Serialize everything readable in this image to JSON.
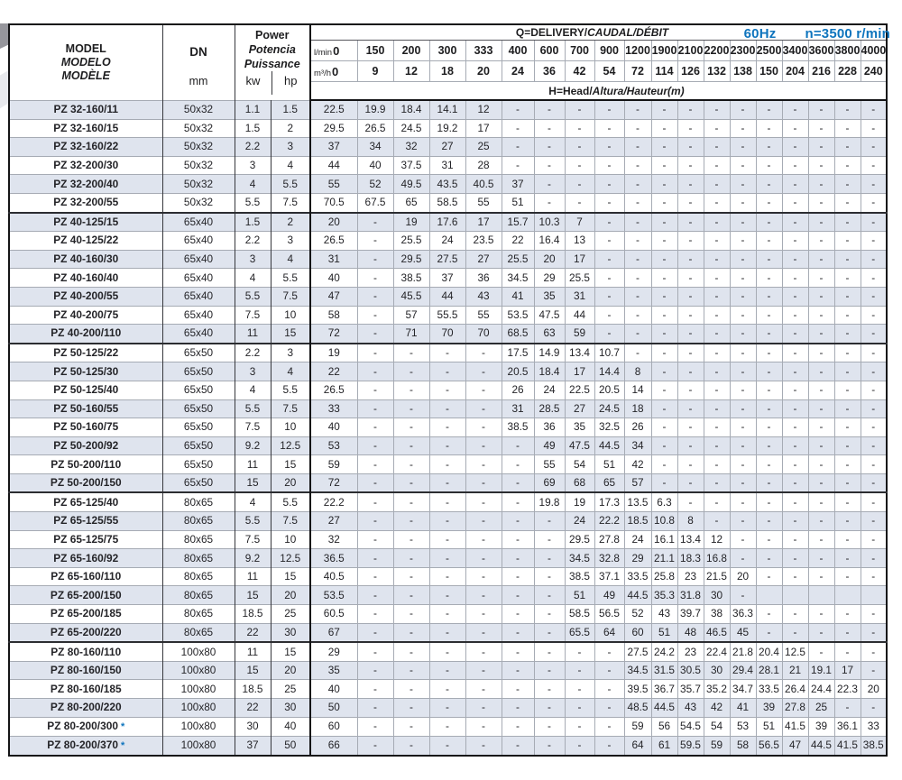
{
  "colors": {
    "accent": "#0e74bd",
    "stripe": "#dfe4ee"
  },
  "header": {
    "frequency": "60Hz",
    "speed": "n=3500 r/min"
  },
  "table": {
    "model_lines": [
      {
        "text": "MODEL",
        "italic": false
      },
      {
        "text": "MODELO",
        "italic": true
      },
      {
        "text": "MODÈLE",
        "italic": true
      }
    ],
    "dn_label": "DN",
    "dn_unit": "mm",
    "power_lines": [
      {
        "text": "Power",
        "italic": false
      },
      {
        "text": "Potencia",
        "italic": true
      },
      {
        "text": "Puissance",
        "italic": true
      }
    ],
    "kw_label": "kw",
    "hp_label": "hp",
    "q_segments": [
      {
        "text": "Q=DELIVERY/",
        "italic": false
      },
      {
        "text": "CAUDAL/",
        "italic": true
      },
      {
        "text": "DÉBIT",
        "italic": true
      }
    ],
    "h_segments": [
      {
        "text": "H=Head/",
        "italic": false
      },
      {
        "text": "Altura/",
        "italic": true
      },
      {
        "text": "Hauteur(m)",
        "italic": true
      }
    ],
    "lmin_label": "l/min",
    "m3h_label": "m³/h",
    "flow_lmin": [
      "0",
      "150",
      "200",
      "300",
      "333",
      "400",
      "600",
      "700",
      "900",
      "1200",
      "1900",
      "2100",
      "2200",
      "2300",
      "2500",
      "3400",
      "3600",
      "3800",
      "4000"
    ],
    "flow_m3h": [
      "0",
      "9",
      "12",
      "18",
      "20",
      "24",
      "36",
      "42",
      "54",
      "72",
      "114",
      "126",
      "132",
      "138",
      "150",
      "204",
      "216",
      "228",
      "240"
    ],
    "star_label": "*",
    "rows": [
      {
        "model": "PZ 32-160/11",
        "star": false,
        "dn": "50x32",
        "kw": "1.1",
        "hp": "1.5",
        "head": [
          "22.5",
          "19.9",
          "18.4",
          "14.1",
          "12",
          "-",
          "-",
          "-",
          "-",
          "-",
          "-",
          "-",
          "-",
          "-",
          "-",
          "-",
          "-",
          "-",
          "-"
        ]
      },
      {
        "model": "PZ 32-160/15",
        "star": false,
        "dn": "50x32",
        "kw": "1.5",
        "hp": "2",
        "head": [
          "29.5",
          "26.5",
          "24.5",
          "19.2",
          "17",
          "-",
          "-",
          "-",
          "-",
          "-",
          "-",
          "-",
          "-",
          "-",
          "-",
          "-",
          "-",
          "-",
          "-"
        ]
      },
      {
        "model": "PZ 32-160/22",
        "star": false,
        "dn": "50x32",
        "kw": "2.2",
        "hp": "3",
        "head": [
          "37",
          "34",
          "32",
          "27",
          "25",
          "-",
          "-",
          "-",
          "-",
          "-",
          "-",
          "-",
          "-",
          "-",
          "-",
          "-",
          "-",
          "-",
          "-"
        ]
      },
      {
        "model": "PZ 32-200/30",
        "star": false,
        "dn": "50x32",
        "kw": "3",
        "hp": "4",
        "head": [
          "44",
          "40",
          "37.5",
          "31",
          "28",
          "-",
          "-",
          "-",
          "-",
          "-",
          "-",
          "-",
          "-",
          "-",
          "-",
          "-",
          "-",
          "-",
          "-"
        ]
      },
      {
        "model": "PZ 32-200/40",
        "star": false,
        "dn": "50x32",
        "kw": "4",
        "hp": "5.5",
        "head": [
          "55",
          "52",
          "49.5",
          "43.5",
          "40.5",
          "37",
          "-",
          "-",
          "-",
          "-",
          "-",
          "-",
          "-",
          "-",
          "-",
          "-",
          "-",
          "-",
          "-"
        ]
      },
      {
        "model": "PZ 32-200/55",
        "star": false,
        "dn": "50x32",
        "kw": "5.5",
        "hp": "7.5",
        "head": [
          "70.5",
          "67.5",
          "65",
          "58.5",
          "55",
          "51",
          "-",
          "-",
          "-",
          "-",
          "-",
          "-",
          "-",
          "-",
          "-",
          "-",
          "-",
          "-",
          "-"
        ]
      },
      {
        "model": "PZ 40-125/15",
        "star": false,
        "dn": "65x40",
        "kw": "1.5",
        "hp": "2",
        "head": [
          "20",
          "-",
          "19",
          "17.6",
          "17",
          "15.7",
          "10.3",
          "7",
          "-",
          "-",
          "-",
          "-",
          "-",
          "-",
          "-",
          "-",
          "-",
          "-",
          "-"
        ]
      },
      {
        "model": "PZ 40-125/22",
        "star": false,
        "dn": "65x40",
        "kw": "2.2",
        "hp": "3",
        "head": [
          "26.5",
          "-",
          "25.5",
          "24",
          "23.5",
          "22",
          "16.4",
          "13",
          "-",
          "-",
          "-",
          "-",
          "-",
          "-",
          "-",
          "-",
          "-",
          "-",
          "-"
        ]
      },
      {
        "model": "PZ 40-160/30",
        "star": false,
        "dn": "65x40",
        "kw": "3",
        "hp": "4",
        "head": [
          "31",
          "-",
          "29.5",
          "27.5",
          "27",
          "25.5",
          "20",
          "17",
          "-",
          "-",
          "-",
          "-",
          "-",
          "-",
          "-",
          "-",
          "-",
          "-",
          "-"
        ]
      },
      {
        "model": "PZ 40-160/40",
        "star": false,
        "dn": "65x40",
        "kw": "4",
        "hp": "5.5",
        "head": [
          "40",
          "-",
          "38.5",
          "37",
          "36",
          "34.5",
          "29",
          "25.5",
          "-",
          "-",
          "-",
          "-",
          "-",
          "-",
          "-",
          "-",
          "-",
          "-",
          "-"
        ]
      },
      {
        "model": "PZ 40-200/55",
        "star": false,
        "dn": "65x40",
        "kw": "5.5",
        "hp": "7.5",
        "head": [
          "47",
          "-",
          "45.5",
          "44",
          "43",
          "41",
          "35",
          "31",
          "-",
          "-",
          "-",
          "-",
          "-",
          "-",
          "-",
          "-",
          "-",
          "-",
          "-"
        ]
      },
      {
        "model": "PZ 40-200/75",
        "star": false,
        "dn": "65x40",
        "kw": "7.5",
        "hp": "10",
        "head": [
          "58",
          "-",
          "57",
          "55.5",
          "55",
          "53.5",
          "47.5",
          "44",
          "-",
          "-",
          "-",
          "-",
          "-",
          "-",
          "-",
          "-",
          "-",
          "-",
          "-"
        ]
      },
      {
        "model": "PZ 40-200/110",
        "star": false,
        "dn": "65x40",
        "kw": "11",
        "hp": "15",
        "head": [
          "72",
          "-",
          "71",
          "70",
          "70",
          "68.5",
          "63",
          "59",
          "-",
          "-",
          "-",
          "-",
          "-",
          "-",
          "-",
          "-",
          "-",
          "-",
          "-"
        ]
      },
      {
        "model": "PZ 50-125/22",
        "star": false,
        "dn": "65x50",
        "kw": "2.2",
        "hp": "3",
        "head": [
          "19",
          "-",
          "-",
          "-",
          "-",
          "17.5",
          "14.9",
          "13.4",
          "10.7",
          "-",
          "-",
          "-",
          "-",
          "-",
          "-",
          "-",
          "-",
          "-",
          "-"
        ]
      },
      {
        "model": "PZ 50-125/30",
        "star": false,
        "dn": "65x50",
        "kw": "3",
        "hp": "4",
        "head": [
          "22",
          "-",
          "-",
          "-",
          "-",
          "20.5",
          "18.4",
          "17",
          "14.4",
          "8",
          "-",
          "-",
          "-",
          "-",
          "-",
          "-",
          "-",
          "-",
          "-"
        ]
      },
      {
        "model": "PZ 50-125/40",
        "star": false,
        "dn": "65x50",
        "kw": "4",
        "hp": "5.5",
        "head": [
          "26.5",
          "-",
          "-",
          "-",
          "-",
          "26",
          "24",
          "22.5",
          "20.5",
          "14",
          "-",
          "-",
          "-",
          "-",
          "-",
          "-",
          "-",
          "-",
          "-"
        ]
      },
      {
        "model": "PZ 50-160/55",
        "star": false,
        "dn": "65x50",
        "kw": "5.5",
        "hp": "7.5",
        "head": [
          "33",
          "-",
          "-",
          "-",
          "-",
          "31",
          "28.5",
          "27",
          "24.5",
          "18",
          "-",
          "-",
          "-",
          "-",
          "-",
          "-",
          "-",
          "-",
          "-"
        ]
      },
      {
        "model": "PZ 50-160/75",
        "star": false,
        "dn": "65x50",
        "kw": "7.5",
        "hp": "10",
        "head": [
          "40",
          "-",
          "-",
          "-",
          "-",
          "38.5",
          "36",
          "35",
          "32.5",
          "26",
          "-",
          "-",
          "-",
          "-",
          "-",
          "-",
          "-",
          "-",
          "-"
        ]
      },
      {
        "model": "PZ 50-200/92",
        "star": false,
        "dn": "65x50",
        "kw": "9.2",
        "hp": "12.5",
        "head": [
          "53",
          "-",
          "-",
          "-",
          "-",
          "-",
          "49",
          "47.5",
          "44.5",
          "34",
          "-",
          "-",
          "-",
          "-",
          "-",
          "-",
          "-",
          "-",
          "-"
        ]
      },
      {
        "model": "PZ 50-200/110",
        "star": false,
        "dn": "65x50",
        "kw": "11",
        "hp": "15",
        "head": [
          "59",
          "-",
          "-",
          "-",
          "-",
          "-",
          "55",
          "54",
          "51",
          "42",
          "-",
          "-",
          "-",
          "-",
          "-",
          "-",
          "-",
          "-",
          "-"
        ]
      },
      {
        "model": "PZ 50-200/150",
        "star": false,
        "dn": "65x50",
        "kw": "15",
        "hp": "20",
        "head": [
          "72",
          "-",
          "-",
          "-",
          "-",
          "-",
          "69",
          "68",
          "65",
          "57",
          "-",
          "-",
          "-",
          "-",
          "-",
          "-",
          "-",
          "-",
          "-"
        ]
      },
      {
        "model": "PZ 65-125/40",
        "star": false,
        "dn": "80x65",
        "kw": "4",
        "hp": "5.5",
        "head": [
          "22.2",
          "-",
          "-",
          "-",
          "-",
          "-",
          "19.8",
          "19",
          "17.3",
          "13.5",
          "6.3",
          "-",
          "-",
          "-",
          "-",
          "-",
          "-",
          "-",
          "-"
        ]
      },
      {
        "model": "PZ 65-125/55",
        "star": false,
        "dn": "80x65",
        "kw": "5.5",
        "hp": "7.5",
        "head": [
          "27",
          "-",
          "-",
          "-",
          "-",
          "-",
          "-",
          "24",
          "22.2",
          "18.5",
          "10.8",
          "8",
          "-",
          "-",
          "-",
          "-",
          "-",
          "-",
          "-"
        ]
      },
      {
        "model": "PZ 65-125/75",
        "star": false,
        "dn": "80x65",
        "kw": "7.5",
        "hp": "10",
        "head": [
          "32",
          "-",
          "-",
          "-",
          "-",
          "-",
          "-",
          "29.5",
          "27.8",
          "24",
          "16.1",
          "13.4",
          "12",
          "-",
          "-",
          "-",
          "-",
          "-",
          "-"
        ]
      },
      {
        "model": "PZ 65-160/92",
        "star": false,
        "dn": "80x65",
        "kw": "9.2",
        "hp": "12.5",
        "head": [
          "36.5",
          "-",
          "-",
          "-",
          "-",
          "-",
          "-",
          "34.5",
          "32.8",
          "29",
          "21.1",
          "18.3",
          "16.8",
          "-",
          "-",
          "-",
          "-",
          "-",
          "-"
        ]
      },
      {
        "model": "PZ 65-160/110",
        "star": false,
        "dn": "80x65",
        "kw": "11",
        "hp": "15",
        "head": [
          "40.5",
          "-",
          "-",
          "-",
          "-",
          "-",
          "-",
          "38.5",
          "37.1",
          "33.5",
          "25.8",
          "23",
          "21.5",
          "20",
          "-",
          "-",
          "-",
          "-",
          "-"
        ]
      },
      {
        "model": "PZ 65-200/150",
        "star": false,
        "dn": "80x65",
        "kw": "15",
        "hp": "20",
        "head": [
          "53.5",
          "-",
          "-",
          "-",
          "-",
          "-",
          "-",
          "51",
          "49",
          "44.5",
          "35.3",
          "31.8",
          "30",
          "-",
          "",
          "",
          "",
          "",
          ""
        ]
      },
      {
        "model": "PZ 65-200/185",
        "star": false,
        "dn": "80x65",
        "kw": "18.5",
        "hp": "25",
        "head": [
          "60.5",
          "-",
          "-",
          "-",
          "-",
          "-",
          "-",
          "58.5",
          "56.5",
          "52",
          "43",
          "39.7",
          "38",
          "36.3",
          "-",
          "-",
          "-",
          "-",
          "-"
        ]
      },
      {
        "model": "PZ 65-200/220",
        "star": false,
        "dn": "80x65",
        "kw": "22",
        "hp": "30",
        "head": [
          "67",
          "-",
          "-",
          "-",
          "-",
          "-",
          "-",
          "65.5",
          "64",
          "60",
          "51",
          "48",
          "46.5",
          "45",
          "-",
          "-",
          "-",
          "-",
          "-"
        ]
      },
      {
        "model": "PZ 80-160/110",
        "star": false,
        "dn": "100x80",
        "kw": "11",
        "hp": "15",
        "head": [
          "29",
          "-",
          "-",
          "-",
          "-",
          "-",
          "-",
          "-",
          "-",
          "27.5",
          "24.2",
          "23",
          "22.4",
          "21.8",
          "20.4",
          "12.5",
          "-",
          "-",
          "-"
        ]
      },
      {
        "model": "PZ 80-160/150",
        "star": false,
        "dn": "100x80",
        "kw": "15",
        "hp": "20",
        "head": [
          "35",
          "-",
          "-",
          "-",
          "-",
          "-",
          "-",
          "-",
          "-",
          "34.5",
          "31.5",
          "30.5",
          "30",
          "29.4",
          "28.1",
          "21",
          "19.1",
          "17",
          "-"
        ]
      },
      {
        "model": "PZ 80-160/185",
        "star": false,
        "dn": "100x80",
        "kw": "18.5",
        "hp": "25",
        "head": [
          "40",
          "-",
          "-",
          "-",
          "-",
          "-",
          "-",
          "-",
          "-",
          "39.5",
          "36.7",
          "35.7",
          "35.2",
          "34.7",
          "33.5",
          "26.4",
          "24.4",
          "22.3",
          "20"
        ]
      },
      {
        "model": "PZ 80-200/220",
        "star": false,
        "dn": "100x80",
        "kw": "22",
        "hp": "30",
        "head": [
          "50",
          "-",
          "-",
          "-",
          "-",
          "-",
          "-",
          "-",
          "-",
          "48.5",
          "44.5",
          "43",
          "42",
          "41",
          "39",
          "27.8",
          "25",
          "-",
          "-"
        ]
      },
      {
        "model": "PZ 80-200/300",
        "star": true,
        "dn": "100x80",
        "kw": "30",
        "hp": "40",
        "head": [
          "60",
          "-",
          "-",
          "-",
          "-",
          "-",
          "-",
          "-",
          "-",
          "59",
          "56",
          "54.5",
          "54",
          "53",
          "51",
          "41.5",
          "39",
          "36.1",
          "33"
        ]
      },
      {
        "model": "PZ 80-200/370",
        "star": true,
        "dn": "100x80",
        "kw": "37",
        "hp": "50",
        "head": [
          "66",
          "-",
          "-",
          "-",
          "-",
          "-",
          "-",
          "-",
          "-",
          "64",
          "61",
          "59.5",
          "59",
          "58",
          "56.5",
          "47",
          "44.5",
          "41.5",
          "38.5"
        ]
      }
    ]
  }
}
